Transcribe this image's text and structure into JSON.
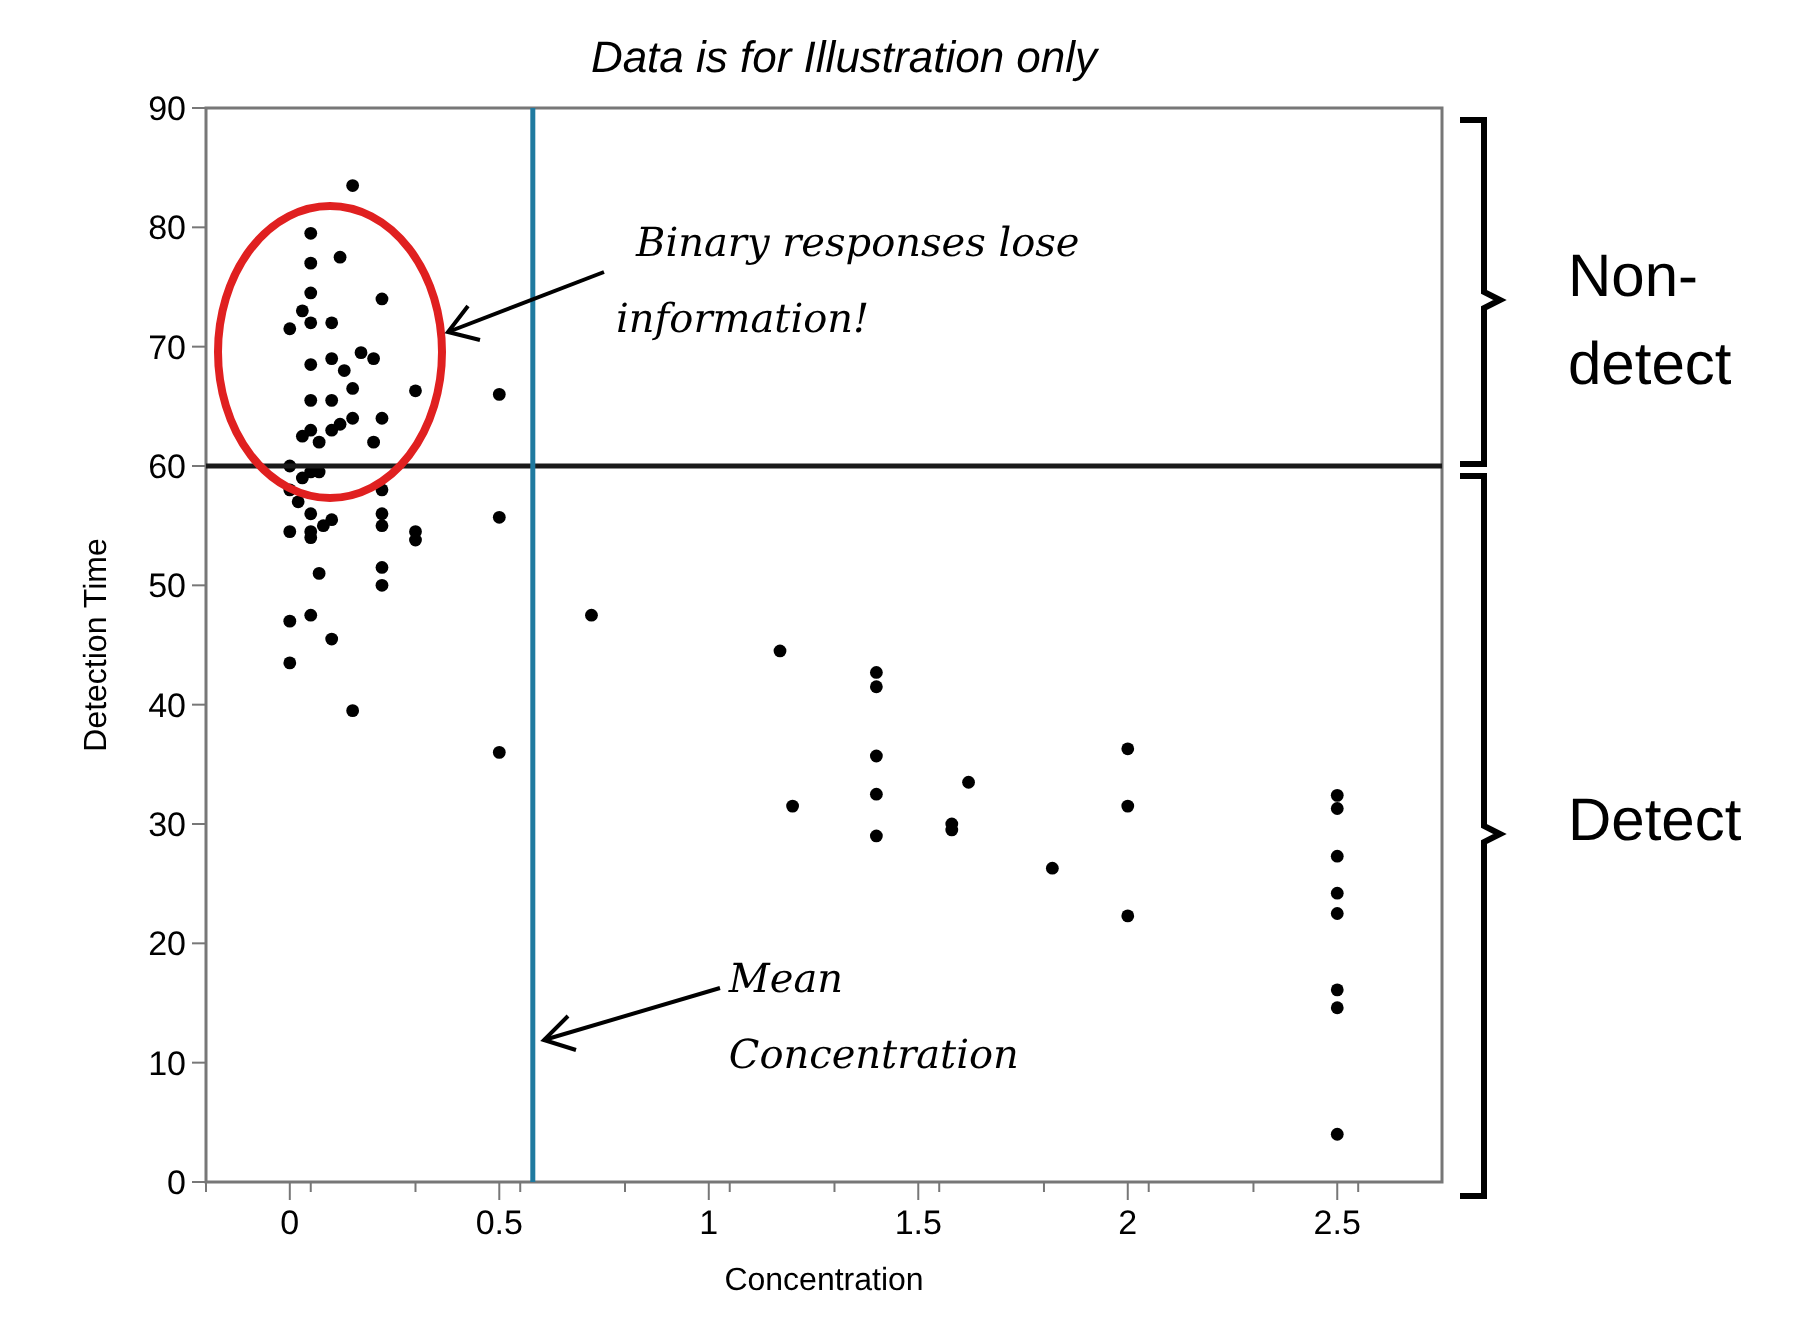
{
  "chart_data": {
    "type": "scatter",
    "title": "Data is for Illustration only",
    "xlabel": "Concentration",
    "ylabel": "Detection Time",
    "xlim": [
      -0.2,
      2.75
    ],
    "xticks": [
      0,
      0.5,
      1,
      1.5,
      2,
      2.5
    ],
    "ylim": [
      0,
      90
    ],
    "yticks": [
      0,
      10,
      20,
      30,
      40,
      50,
      60,
      70,
      80,
      90
    ],
    "grid": false,
    "marker": "circle",
    "series": [
      {
        "color": "#000000",
        "x": [
          0.15,
          0.05,
          0.12,
          0.05,
          0.05,
          0.22,
          0.03,
          0.05,
          0.0,
          0.1,
          0.05,
          0.1,
          0.17,
          0.2,
          0.13,
          0.15,
          0.3,
          0.05,
          0.1,
          0.15,
          0.1,
          0.05,
          0.03,
          0.07,
          0.12,
          0.2,
          0.22,
          0.0,
          0.05,
          0.07,
          0.03,
          0.22,
          0.0,
          0.02,
          0.05,
          0.1,
          0.22,
          0.22,
          0.3,
          0.3,
          0.0,
          0.05,
          0.08,
          0.05,
          0.07,
          0.22,
          0.22,
          0.05,
          0.0,
          0.1,
          0.0,
          0.15,
          0.5,
          0.5,
          0.5,
          0.72,
          1.17,
          1.2,
          1.4,
          1.4,
          1.4,
          1.4,
          1.4,
          1.58,
          1.58,
          1.62,
          1.82,
          2.0,
          2.0,
          2.0,
          2.5,
          2.5,
          2.5,
          2.5,
          2.5,
          2.5,
          2.5,
          2.5
        ],
        "values": [
          83.5,
          79.5,
          77.5,
          77,
          74.5,
          74,
          73,
          72,
          71.5,
          72,
          68.5,
          69,
          69.5,
          69,
          68,
          66.5,
          66.3,
          65.5,
          65.5,
          64,
          63,
          63,
          62.5,
          62,
          63.5,
          62,
          64,
          60,
          59.5,
          59.5,
          59,
          58,
          58,
          57,
          56,
          55.5,
          56,
          55,
          54.5,
          53.8,
          54.5,
          54.5,
          55,
          54,
          51,
          51.5,
          50,
          47.5,
          47,
          45.5,
          43.5,
          39.5,
          66,
          55.7,
          36,
          47.5,
          44.5,
          31.5,
          42.7,
          41.5,
          35.7,
          32.5,
          29,
          30,
          29.5,
          33.5,
          26.3,
          36.3,
          31.5,
          22.3,
          32.4,
          31.3,
          27.3,
          24.2,
          22.5,
          16.1,
          14.6,
          4
        ]
      }
    ],
    "ref_lines": [
      {
        "axis": "y",
        "value": 60,
        "color": "#1a1a1a"
      },
      {
        "axis": "x",
        "value": 0.58,
        "color": "#1f7aa0",
        "label": "Mean\nConcentration"
      }
    ],
    "annotations": [
      "Binary responses lose\ninformation!",
      "Non-\ndetect",
      "Detect"
    ]
  }
}
